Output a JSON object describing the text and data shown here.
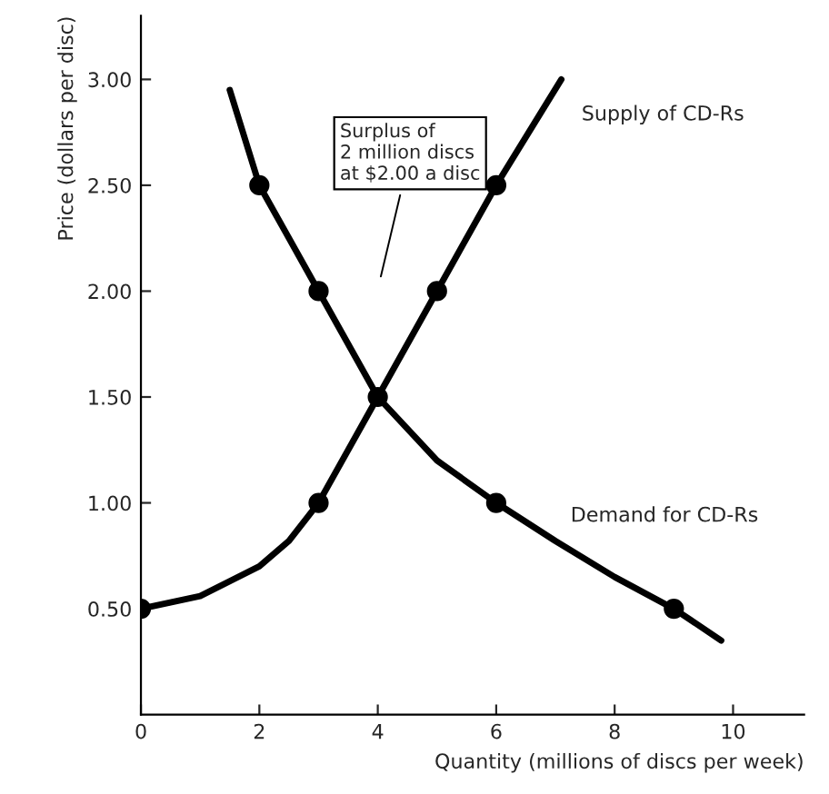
{
  "chart_data": {
    "type": "line",
    "xlabel": "Quantity (millions of discs per week)",
    "ylabel": "Price (dollars per disc)",
    "xlim": [
      0,
      11.2
    ],
    "ylim": [
      0,
      3.3
    ],
    "xticks": [
      0,
      2,
      4,
      6,
      8,
      10
    ],
    "yticks": [
      {
        "value": 0.5,
        "label": "0.50"
      },
      {
        "value": 1.0,
        "label": "1.00"
      },
      {
        "value": 1.5,
        "label": "1.50"
      },
      {
        "value": 2.0,
        "label": "2.00"
      },
      {
        "value": 2.5,
        "label": "2.50"
      },
      {
        "value": 3.0,
        "label": "3.00"
      }
    ],
    "grid": false,
    "legend": false,
    "series": [
      {
        "name": "Demand for CD-Rs",
        "color": "#000000",
        "marker": "none",
        "x": [
          1.5,
          2,
          3,
          4,
          5,
          6,
          7,
          8,
          9,
          9.8
        ],
        "values": [
          2.95,
          2.5,
          2.0,
          1.5,
          1.2,
          1.0,
          0.82,
          0.65,
          0.5,
          0.35
        ]
      },
      {
        "name": "Supply of CD-Rs",
        "color": "#000000",
        "marker": "none",
        "x": [
          0,
          1,
          2,
          2.5,
          3,
          4,
          5,
          6,
          7.1
        ],
        "values": [
          0.5,
          0.56,
          0.7,
          0.82,
          1.0,
          1.5,
          2.0,
          2.5,
          3.0
        ]
      },
      {
        "type": "scatter",
        "color": "#000000",
        "marker": "circle",
        "x": [
          2,
          3,
          4,
          6,
          9
        ],
        "values": [
          2.5,
          2.0,
          1.5,
          1.0,
          0.5
        ]
      },
      {
        "type": "scatter",
        "color": "#000000",
        "marker": "circle",
        "x": [
          0,
          3,
          5,
          6
        ],
        "values": [
          0.5,
          1.0,
          2.0,
          2.5
        ]
      }
    ],
    "annotations": [
      "Surplus of\n2 million discs\nat $2.00 a disc"
    ]
  }
}
